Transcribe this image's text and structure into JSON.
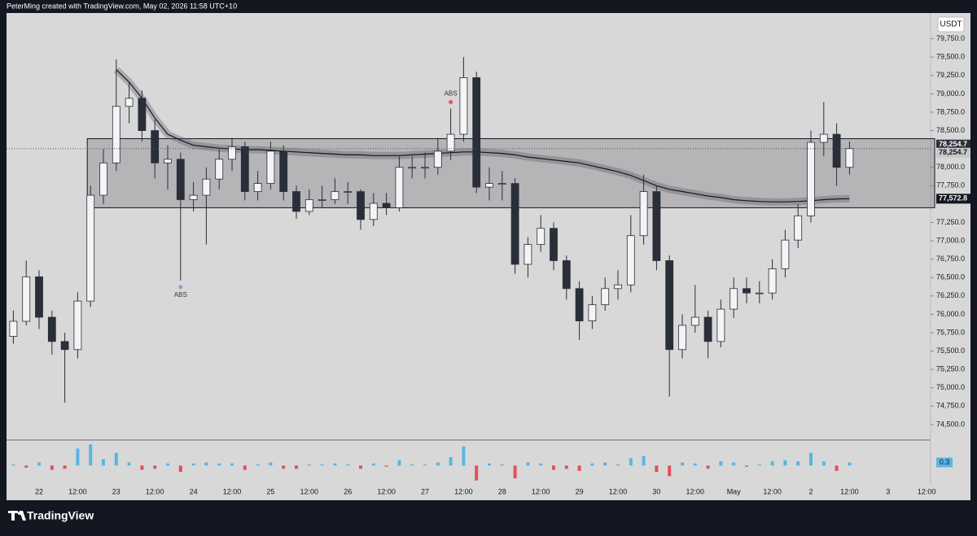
{
  "header": {
    "credit": "PeterMing created with TradingView.com, May 02, 2026 11:58 UTC+10",
    "currency": "USDT",
    "brand": "TradingView"
  },
  "chart_data": {
    "type": "candlestick",
    "categories": [
      null,
      null,
      "22",
      null,
      null,
      "12:00",
      null,
      null,
      "23",
      null,
      null,
      "12:00",
      null,
      null,
      "24",
      null,
      null,
      "12:00",
      null,
      null,
      "25",
      null,
      null,
      "12:00",
      null,
      null,
      "26",
      null,
      null,
      "12:00",
      null,
      null,
      "27",
      null,
      null,
      "12:00",
      null,
      null,
      "28",
      null,
      null,
      "12:00",
      null,
      null,
      "29",
      null,
      null,
      "12:00",
      null,
      null,
      "30",
      null,
      null,
      "12:00",
      null,
      null,
      "May",
      null,
      null,
      "12:00",
      null,
      null,
      "2",
      null,
      null,
      "12:00",
      null,
      null,
      "3",
      null,
      null,
      "12:00"
    ],
    "open": [
      75700,
      75905,
      76510,
      75960,
      75630,
      75520,
      76180,
      77620,
      78060,
      78830,
      78940,
      78500,
      78060,
      78110,
      77560,
      77620,
      77840,
      78110,
      78280,
      77670,
      77780,
      78220,
      77670,
      77400,
      77560,
      77560,
      77670,
      77670,
      77290,
      77510,
      77450,
      78000,
      78000,
      78000,
      78220,
      78450,
      79220,
      77730,
      77780,
      77780,
      76680,
      76950,
      77170,
      76730,
      76350,
      75910,
      76130,
      76350,
      76400,
      77070,
      77670,
      76730,
      75520,
      75850,
      75960,
      75630,
      76070,
      76350,
      76290,
      76290,
      76620,
      77010,
      77340,
      78340,
      78450,
      78000,
      null,
      null,
      null,
      null,
      null,
      null
    ],
    "high": [
      76050,
      76730,
      76600,
      76050,
      75750,
      76300,
      77750,
      78250,
      79470,
      79150,
      79050,
      78650,
      78300,
      78200,
      77800,
      78000,
      78250,
      78400,
      78350,
      77950,
      78350,
      78300,
      77750,
      77700,
      77750,
      77850,
      77800,
      77700,
      77650,
      77650,
      78150,
      78150,
      78200,
      78400,
      78800,
      79500,
      79300,
      78000,
      77950,
      77850,
      77050,
      77350,
      77250,
      76800,
      76450,
      76250,
      76500,
      76600,
      77350,
      77900,
      77750,
      76800,
      76000,
      76400,
      76050,
      76200,
      76500,
      76500,
      76450,
      76750,
      77150,
      77500,
      78500,
      78890,
      78600,
      78350,
      null,
      null,
      null,
      null,
      null,
      null
    ],
    "low": [
      75600,
      75850,
      75800,
      75450,
      74800,
      75400,
      76100,
      77500,
      77950,
      78600,
      78350,
      77850,
      77700,
      76460,
      77400,
      76950,
      77700,
      77950,
      77550,
      77550,
      77700,
      77550,
      77300,
      77350,
      77450,
      77500,
      77500,
      77150,
      77200,
      77350,
      77400,
      77850,
      77850,
      77900,
      78100,
      78350,
      77650,
      77550,
      77550,
      76550,
      76500,
      76850,
      76600,
      76200,
      75650,
      75800,
      76050,
      76200,
      76300,
      76950,
      76600,
      74880,
      75400,
      75750,
      75400,
      75550,
      75950,
      76150,
      76150,
      76200,
      76500,
      76900,
      77250,
      78150,
      77750,
      77900,
      null,
      null,
      null,
      null,
      null,
      null
    ],
    "close": [
      75905,
      76510,
      75960,
      75630,
      75520,
      76180,
      77620,
      78060,
      78830,
      78940,
      78500,
      78060,
      78110,
      77560,
      77620,
      77840,
      78110,
      78280,
      77670,
      77780,
      78220,
      77670,
      77400,
      77560,
      77560,
      77670,
      77670,
      77290,
      77510,
      77450,
      78000,
      78000,
      78000,
      78220,
      78450,
      79220,
      77730,
      77780,
      77780,
      76680,
      76950,
      77170,
      76730,
      76350,
      75910,
      76130,
      76350,
      76400,
      77070,
      77670,
      76730,
      75520,
      75850,
      75960,
      75630,
      76070,
      76350,
      76290,
      76290,
      76620,
      77010,
      77340,
      78340,
      78450,
      78000,
      78254.7,
      null,
      null,
      null,
      null,
      null,
      null
    ],
    "up_color": "#f4f4f6",
    "down_color": "#2a2e39",
    "vwap": {
      "color": "#131722",
      "values": [
        null,
        null,
        null,
        null,
        null,
        null,
        null,
        null,
        79330,
        79160,
        78940,
        78670,
        78450,
        78370,
        78300,
        78280,
        78260,
        78250,
        78240,
        78240,
        78230,
        78220,
        78210,
        78200,
        78190,
        78180,
        78170,
        78170,
        78160,
        78160,
        78160,
        78170,
        78180,
        78190,
        78200,
        78210,
        78210,
        78200,
        78190,
        78170,
        78140,
        78120,
        78100,
        78080,
        78060,
        78020,
        77980,
        77940,
        77890,
        77820,
        77750,
        77700,
        77670,
        77640,
        77610,
        77590,
        77560,
        77545,
        77535,
        77530,
        77530,
        77535,
        77545,
        77560,
        77570,
        77572.8,
        null,
        null,
        null,
        null,
        null,
        null
      ]
    },
    "range_box": {
      "high": 78390,
      "low": 77450
    },
    "price_labels": [
      {
        "value": 78254.7,
        "label": "78,254.7"
      },
      {
        "value": 78254.7,
        "label": "78,254.7"
      },
      {
        "value": 77572.8,
        "label": "77,572.8"
      }
    ],
    "annotations": [
      {
        "text": "ABS",
        "color": "#7ea6e0"
      },
      {
        "text": "ABS",
        "color": "#e05a66"
      }
    ],
    "ylim": [
      74300,
      80100
    ],
    "yticks": [
      {
        "value": 74500,
        "label": "74,500.0"
      },
      {
        "value": 74750,
        "label": "74,750.0"
      },
      {
        "value": 75000,
        "label": "75,000.0"
      },
      {
        "value": 75250,
        "label": "75,250.0"
      },
      {
        "value": 75500,
        "label": "75,500.0"
      },
      {
        "value": 75750,
        "label": "75,750.0"
      },
      {
        "value": 76000,
        "label": "76,000.0"
      },
      {
        "value": 76250,
        "label": "76,250.0"
      },
      {
        "value": 76500,
        "label": "76,500.0"
      },
      {
        "value": 76750,
        "label": "76,750.0"
      },
      {
        "value": 77000,
        "label": "77,000.0"
      },
      {
        "value": 77250,
        "label": "77,250.0"
      },
      {
        "value": 77750,
        "label": "77,750.0"
      },
      {
        "value": 78000,
        "label": "78,000.0"
      },
      {
        "value": 78500,
        "label": "78,500.0"
      },
      {
        "value": 78750,
        "label": "78,750.0"
      },
      {
        "value": 79000,
        "label": "79,000.0"
      },
      {
        "value": 79250,
        "label": "79,250.0"
      },
      {
        "value": 79500,
        "label": "79,500.0"
      },
      {
        "value": 79750,
        "label": "79,750.0"
      }
    ],
    "delta": {
      "pos_color": "#5ab4e6",
      "neg_color": "#e0505a",
      "ylim": [
        -1.5,
        2.1
      ],
      "values": [
        0.1,
        -0.2,
        0.3,
        -0.4,
        -0.3,
        1.6,
        2.0,
        0.6,
        1.2,
        0.3,
        -0.4,
        -0.3,
        0.2,
        -0.6,
        0.2,
        0.3,
        0.2,
        0.2,
        -0.4,
        0.1,
        0.3,
        -0.3,
        -0.3,
        0.1,
        0.1,
        0.2,
        0.1,
        -0.3,
        0.2,
        -0.1,
        0.5,
        0.1,
        0.1,
        0.3,
        0.8,
        1.8,
        -1.4,
        0.2,
        0.1,
        -1.2,
        0.3,
        0.2,
        -0.4,
        -0.3,
        -0.5,
        0.2,
        0.3,
        0.1,
        0.7,
        0.9,
        -0.6,
        -1.0,
        0.3,
        0.2,
        -0.3,
        0.4,
        0.3,
        -0.1,
        0.1,
        0.4,
        0.5,
        0.4,
        1.2,
        0.4,
        -0.5,
        0.3,
        null,
        null,
        null,
        null,
        null,
        null
      ]
    }
  }
}
